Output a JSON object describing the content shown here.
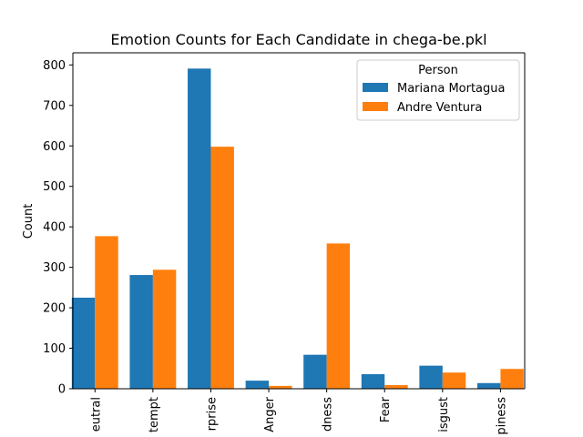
{
  "chart_data": {
    "type": "bar",
    "title": "Emotion Counts for Each Candidate in chega-be.pkl",
    "xlabel": "",
    "ylabel": "Count",
    "ylim": [
      0,
      830
    ],
    "yticks": [
      0,
      100,
      200,
      300,
      400,
      500,
      600,
      700,
      800
    ],
    "categories": [
      "eutral",
      "tempt",
      "rprise",
      "Anger",
      "dness",
      "Fear",
      "isgust",
      "piness"
    ],
    "series": [
      {
        "name": "Mariana Mortagua",
        "color": "#1f77b4",
        "values": [
          225,
          281,
          791,
          20,
          84,
          36,
          57,
          14
        ]
      },
      {
        "name": "Andre Ventura",
        "color": "#ff7f0e",
        "values": [
          377,
          294,
          598,
          7,
          359,
          9,
          40,
          49
        ]
      }
    ],
    "legend": {
      "title": "Person",
      "position": "top-right"
    },
    "grid": false
  }
}
